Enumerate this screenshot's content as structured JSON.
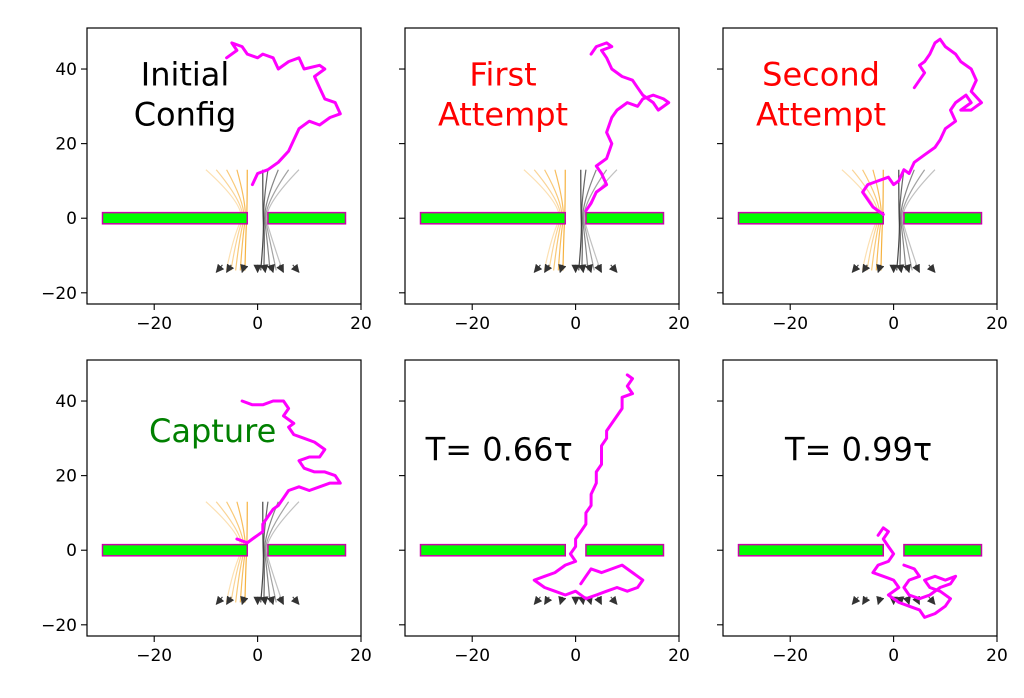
{
  "chart_data": {
    "type": "small_multiples_line",
    "xlim": [
      -33,
      20
    ],
    "ylim": [
      -23,
      51
    ],
    "xticks": [
      -20,
      0,
      20
    ],
    "yticks": [
      -20,
      0,
      20,
      40
    ],
    "tick_labels_x": [
      "−20",
      "0",
      "20"
    ],
    "tick_labels_y": [
      "−20",
      "0",
      "20",
      "40"
    ],
    "membrane": {
      "left": [
        -30,
        -2
      ],
      "right": [
        2,
        17
      ],
      "y_range": [
        -1.5,
        1.5
      ],
      "fill_color": "#00ff00",
      "edge_color": "#cc00aa"
    },
    "polymer_color": "#ff00ff",
    "field_line_colors": [
      "#f5a623",
      "#333333"
    ],
    "panels": [
      {
        "label_lines": [
          "Initial",
          "Config"
        ],
        "label_color": "#000000",
        "label_x": -21,
        "label_y": 35,
        "polymer": [
          [
            -1,
            9
          ],
          [
            0,
            12
          ],
          [
            2,
            13
          ],
          [
            4,
            15
          ],
          [
            6,
            18
          ],
          [
            7,
            21
          ],
          [
            8,
            24
          ],
          [
            10,
            26
          ],
          [
            12,
            25
          ],
          [
            14,
            27
          ],
          [
            16,
            28
          ],
          [
            15,
            31
          ],
          [
            13,
            32
          ],
          [
            12,
            35
          ],
          [
            11,
            38
          ],
          [
            13,
            40
          ],
          [
            12,
            41
          ],
          [
            9,
            40
          ],
          [
            8,
            43
          ],
          [
            6,
            42
          ],
          [
            4,
            40
          ],
          [
            3,
            43
          ],
          [
            1,
            44
          ],
          [
            0,
            43
          ],
          [
            -2,
            44
          ],
          [
            -3,
            46
          ],
          [
            -5,
            47
          ],
          [
            -4,
            45
          ],
          [
            -6,
            43
          ]
        ]
      },
      {
        "label_lines": [
          "First",
          "Attempt"
        ],
        "label_color": "#ff0000",
        "label_x": -21,
        "label_y": 35,
        "polymer": [
          [
            2,
            2
          ],
          [
            3,
            4
          ],
          [
            4,
            7
          ],
          [
            6,
            9
          ],
          [
            5,
            12
          ],
          [
            4,
            14
          ],
          [
            6,
            16
          ],
          [
            7,
            20
          ],
          [
            6,
            23
          ],
          [
            7,
            27
          ],
          [
            8,
            29
          ],
          [
            10,
            31
          ],
          [
            12,
            30
          ],
          [
            13,
            32
          ],
          [
            15,
            33
          ],
          [
            17,
            32
          ],
          [
            18,
            31
          ],
          [
            16,
            29
          ],
          [
            15,
            31
          ],
          [
            13,
            33
          ],
          [
            12,
            35
          ],
          [
            11,
            37
          ],
          [
            9,
            38
          ],
          [
            7,
            40
          ],
          [
            6,
            43
          ],
          [
            5,
            45
          ],
          [
            7,
            46
          ],
          [
            6,
            47
          ],
          [
            4,
            46
          ],
          [
            3,
            44
          ]
        ]
      },
      {
        "label_lines": [
          "Second",
          "Attempt"
        ],
        "label_color": "#ff0000",
        "label_x": -21,
        "label_y": 35,
        "polymer": [
          [
            -2,
            1
          ],
          [
            -4,
            3
          ],
          [
            -5,
            5
          ],
          [
            -6,
            7
          ],
          [
            -5,
            9
          ],
          [
            -3,
            10
          ],
          [
            -1,
            11
          ],
          [
            0,
            9
          ],
          [
            1,
            10
          ],
          [
            2,
            13
          ],
          [
            3,
            12
          ],
          [
            4,
            15
          ],
          [
            6,
            17
          ],
          [
            8,
            19
          ],
          [
            9,
            21
          ],
          [
            10,
            24
          ],
          [
            12,
            26
          ],
          [
            11,
            29
          ],
          [
            12,
            31
          ],
          [
            14,
            33
          ],
          [
            15,
            31
          ],
          [
            13,
            29
          ],
          [
            15,
            29
          ],
          [
            16,
            30
          ],
          [
            17,
            31
          ],
          [
            15,
            34
          ],
          [
            16,
            37
          ],
          [
            15,
            40
          ],
          [
            13,
            42
          ],
          [
            12,
            44
          ],
          [
            10,
            46
          ],
          [
            9,
            48
          ],
          [
            8,
            47
          ],
          [
            7,
            44
          ],
          [
            6,
            42
          ],
          [
            5,
            41
          ],
          [
            6,
            39
          ],
          [
            5,
            37
          ],
          [
            4,
            35
          ]
        ]
      },
      {
        "label_lines": [
          "Capture"
        ],
        "label_color": "#008000",
        "label_x": -21,
        "label_y": 29,
        "polymer": [
          [
            -4,
            3
          ],
          [
            -2,
            2
          ],
          [
            -1,
            3
          ],
          [
            0,
            4
          ],
          [
            1,
            5
          ],
          [
            1,
            7
          ],
          [
            2,
            9
          ],
          [
            3,
            11
          ],
          [
            4,
            12
          ],
          [
            5,
            14
          ],
          [
            6,
            16
          ],
          [
            8,
            17
          ],
          [
            10,
            16
          ],
          [
            12,
            17
          ],
          [
            14,
            18
          ],
          [
            16,
            18
          ],
          [
            15,
            20
          ],
          [
            13,
            21
          ],
          [
            11,
            21
          ],
          [
            9,
            22
          ],
          [
            8,
            24
          ],
          [
            10,
            25
          ],
          [
            12,
            25
          ],
          [
            13,
            27
          ],
          [
            11,
            29
          ],
          [
            9,
            30
          ],
          [
            7,
            31
          ],
          [
            6,
            33
          ],
          [
            7,
            34
          ],
          [
            5,
            36
          ],
          [
            6,
            38
          ],
          [
            5,
            40
          ],
          [
            3,
            40
          ],
          [
            1,
            39
          ],
          [
            -1,
            39
          ],
          [
            -3,
            40
          ]
        ]
      },
      {
        "label_lines": [
          "T= 0.66τ"
        ],
        "label_color": "#000000",
        "label_x": -29,
        "label_y": 24,
        "polymer": [
          [
            10,
            47
          ],
          [
            11,
            46
          ],
          [
            10,
            44
          ],
          [
            11,
            42
          ],
          [
            9,
            41
          ],
          [
            9,
            38
          ],
          [
            8,
            36
          ],
          [
            7,
            34
          ],
          [
            6,
            32
          ],
          [
            6,
            30
          ],
          [
            5,
            28
          ],
          [
            5,
            26
          ],
          [
            5,
            23
          ],
          [
            4,
            21
          ],
          [
            4,
            18
          ],
          [
            3,
            15
          ],
          [
            3,
            12
          ],
          [
            2,
            10
          ],
          [
            2,
            7
          ],
          [
            1,
            5
          ],
          [
            0,
            3
          ],
          [
            0,
            1
          ],
          [
            -1,
            -1
          ],
          [
            0,
            -3
          ],
          [
            -2,
            -4
          ],
          [
            -4,
            -6
          ],
          [
            -6,
            -7
          ],
          [
            -8,
            -8
          ],
          [
            -6,
            -10
          ],
          [
            -4,
            -11
          ],
          [
            -2,
            -12
          ],
          [
            0,
            -11
          ],
          [
            2,
            -13
          ],
          [
            4,
            -12
          ],
          [
            6,
            -11
          ],
          [
            8,
            -10
          ],
          [
            10,
            -11
          ],
          [
            12,
            -10
          ],
          [
            13,
            -8
          ],
          [
            11,
            -6
          ],
          [
            9,
            -4
          ],
          [
            7,
            -5
          ],
          [
            5,
            -6
          ],
          [
            3,
            -5
          ],
          [
            2,
            -7
          ],
          [
            1,
            -9
          ]
        ]
      },
      {
        "label_lines": [
          "T= 0.99τ"
        ],
        "label_color": "#000000",
        "label_x": -21,
        "label_y": 24,
        "polymer": [
          [
            -3,
            4
          ],
          [
            -2,
            6
          ],
          [
            -1,
            5
          ],
          [
            -2,
            3
          ],
          [
            -1,
            1
          ],
          [
            0,
            -1
          ],
          [
            -1,
            -3
          ],
          [
            -3,
            -4
          ],
          [
            -4,
            -6
          ],
          [
            -2,
            -7
          ],
          [
            0,
            -8
          ],
          [
            1,
            -10
          ],
          [
            -1,
            -12
          ],
          [
            1,
            -14
          ],
          [
            3,
            -15
          ],
          [
            5,
            -16
          ],
          [
            6,
            -18
          ],
          [
            8,
            -17
          ],
          [
            10,
            -15
          ],
          [
            11,
            -13
          ],
          [
            9,
            -11
          ],
          [
            7,
            -10
          ],
          [
            6,
            -8
          ],
          [
            8,
            -7
          ],
          [
            10,
            -8
          ],
          [
            12,
            -7
          ],
          [
            11,
            -9
          ],
          [
            9,
            -10
          ],
          [
            7,
            -12
          ],
          [
            5,
            -13
          ],
          [
            3,
            -12
          ],
          [
            2,
            -10
          ],
          [
            3,
            -8
          ],
          [
            5,
            -7
          ],
          [
            4,
            -5
          ],
          [
            2,
            -4
          ]
        ]
      }
    ]
  }
}
